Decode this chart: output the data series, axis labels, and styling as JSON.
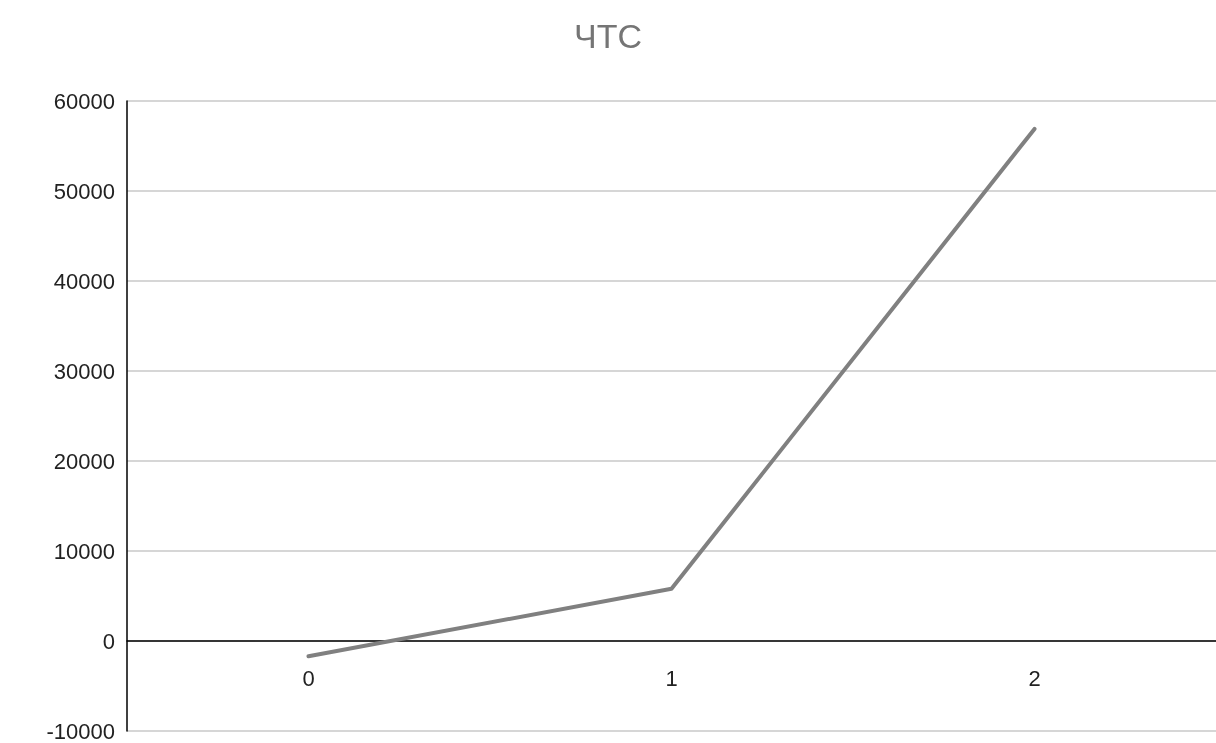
{
  "chart_data": {
    "type": "line",
    "title": "ЧТС",
    "categories": [
      "0",
      "1",
      "2"
    ],
    "series": [
      {
        "color": "#808080",
        "values": [
          -1700,
          5800,
          56900
        ]
      }
    ],
    "ylim": [
      -10000,
      60000
    ],
    "yticks": [
      -10000,
      0,
      10000,
      20000,
      30000,
      40000,
      50000,
      60000
    ],
    "grid": "y",
    "marker": "none",
    "line_style": "solid"
  }
}
